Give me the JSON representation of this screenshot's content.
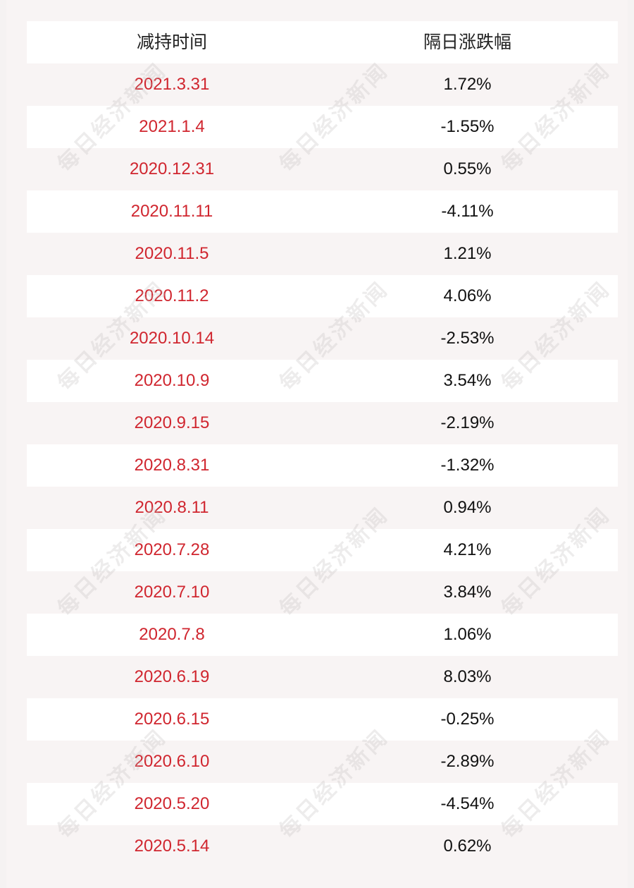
{
  "table": {
    "headers": {
      "date": "减持时间",
      "change": "隔日涨跌幅"
    },
    "rows": [
      {
        "date": "2021.3.31",
        "change": "1.72%"
      },
      {
        "date": "2021.1.4",
        "change": "-1.55%"
      },
      {
        "date": "2020.12.31",
        "change": "0.55%"
      },
      {
        "date": "2020.11.11",
        "change": "-4.11%"
      },
      {
        "date": "2020.11.5",
        "change": "1.21%"
      },
      {
        "date": "2020.11.2",
        "change": "4.06%"
      },
      {
        "date": "2020.10.14",
        "change": "-2.53%"
      },
      {
        "date": "2020.10.9",
        "change": "3.54%"
      },
      {
        "date": "2020.9.15",
        "change": "-2.19%"
      },
      {
        "date": "2020.8.31",
        "change": "-1.32%"
      },
      {
        "date": "2020.8.11",
        "change": "0.94%"
      },
      {
        "date": "2020.7.28",
        "change": "4.21%"
      },
      {
        "date": "2020.7.10",
        "change": "3.84%"
      },
      {
        "date": "2020.7.8",
        "change": "1.06%"
      },
      {
        "date": "2020.6.19",
        "change": "8.03%"
      },
      {
        "date": "2020.6.15",
        "change": "-0.25%"
      },
      {
        "date": "2020.6.10",
        "change": "-2.89%"
      },
      {
        "date": "2020.5.20",
        "change": "-4.54%"
      },
      {
        "date": "2020.5.14",
        "change": "0.62%"
      }
    ]
  },
  "watermark": "每日经济新闻",
  "colors": {
    "date_text": "#d0262f",
    "value_text": "#111111",
    "row_white": "#ffffff",
    "row_tint": "#f8f4f4"
  }
}
